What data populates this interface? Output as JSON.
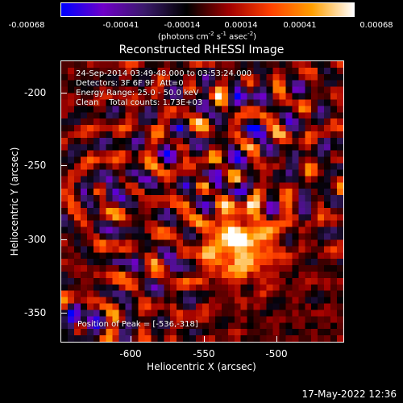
{
  "colorbar": {
    "ticks": [
      "-0.00068",
      "-0.00041",
      "-0.00014",
      "0.00014",
      "0.00041",
      "0.00068"
    ],
    "units_prefix": "(photons cm",
    "units_sup1": "-2",
    "units_mid1": " s",
    "units_sup2": "-1",
    "units_mid2": " asec",
    "units_sup3": "-2",
    "units_suffix": ")"
  },
  "title": "Reconstructed RHESSI Image",
  "info": {
    "line1": "24-Sep-2014 03:49:48.000 to 03:53:24.000",
    "line2": "Detectors: 3F 6F 9F  Att=0",
    "line3": "Energy Range: 25.0 - 50.0 keV",
    "line4": "Clean    Total counts: 1.73E+03",
    "peak": "Position of Peak = [-536,-318]"
  },
  "axes": {
    "xlabel": "Heliocentric X (arcsec)",
    "ylabel": "Heliocentric Y (arcsec)",
    "xticks": [
      "-600",
      "-550",
      "-500"
    ],
    "yticks": [
      "-200",
      "-250",
      "-300",
      "-350"
    ],
    "xlim": [
      -648,
      -540
    ],
    "ylim": [
      -368,
      -176
    ]
  },
  "timestamp": "17-May-2022 12:36",
  "colors": {
    "background": "#000000",
    "foreground": "#ffffff",
    "colormap": [
      "#0000ff",
      "#7000c8",
      "#3a1a6a",
      "#000000",
      "#a00000",
      "#ff4000",
      "#ffa000",
      "#ffffff"
    ]
  }
}
